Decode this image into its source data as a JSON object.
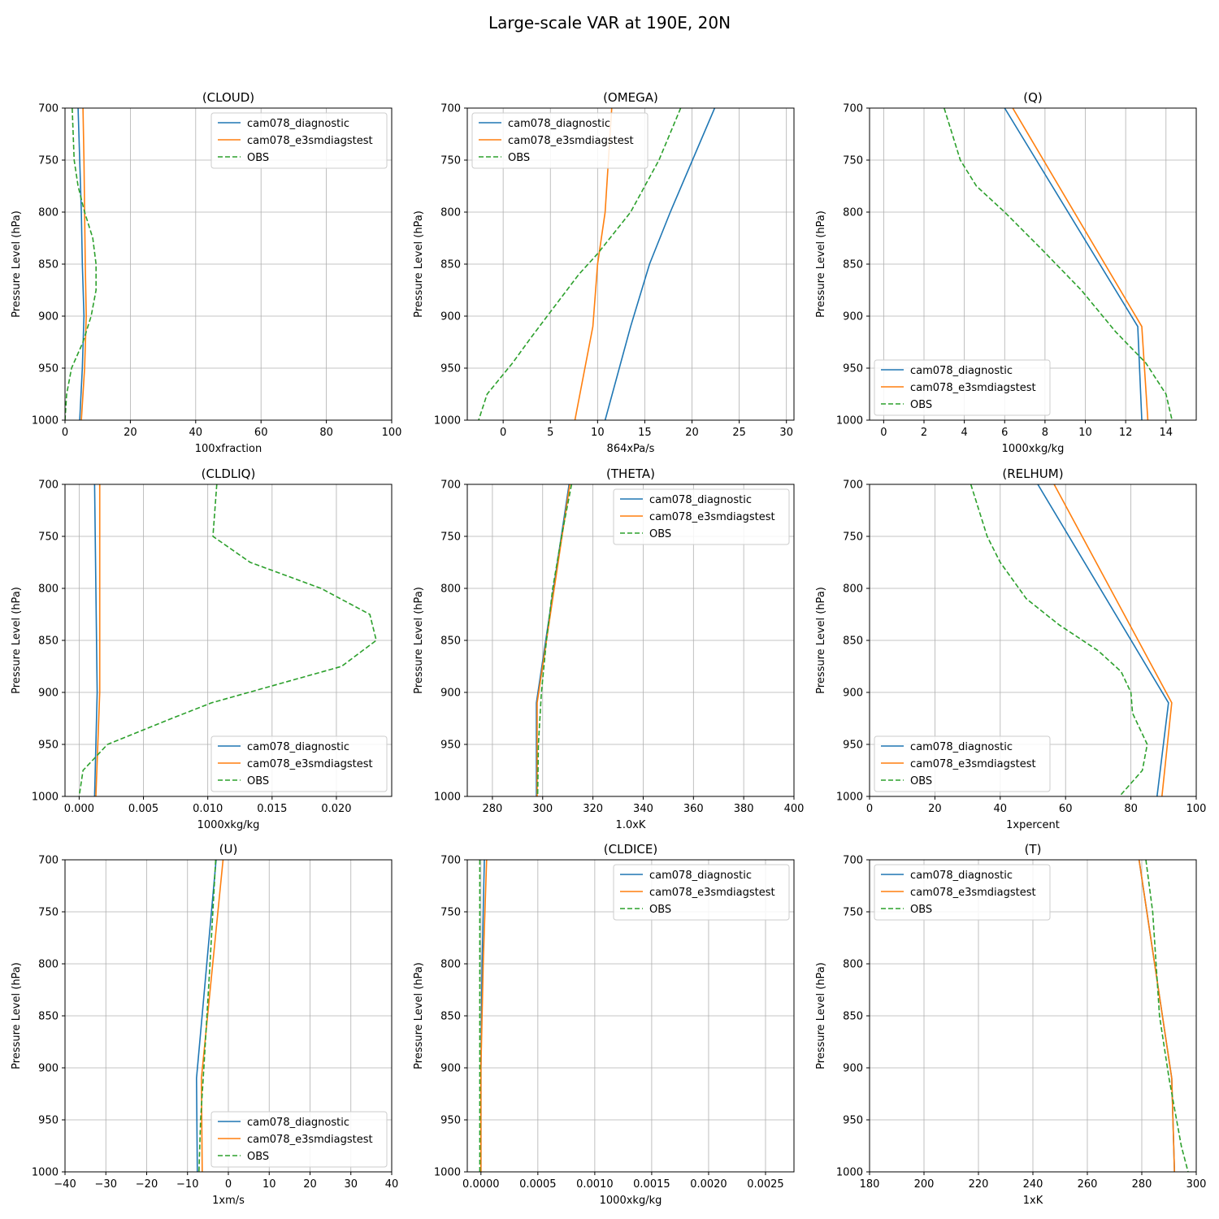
{
  "title": "Large-scale VAR at 190E, 20N",
  "ylabel": "Pressure Level (hPa)",
  "yticks": [
    700,
    750,
    800,
    850,
    900,
    950,
    1000
  ],
  "ylim": [
    1000,
    700
  ],
  "series_colors": {
    "cam078_diagnostic": "#1f77b4",
    "cam078_e3smdiagstest": "#ff7f0e",
    "OBS": "#2ca02c"
  },
  "chart_data": [
    {
      "type": "line",
      "title": "(CLOUD)",
      "xlabel": "100xfraction",
      "xlim": [
        0,
        100
      ],
      "xticks": [
        0,
        20,
        40,
        60,
        80,
        100
      ],
      "xtick_labels": [
        "0",
        "20",
        "40",
        "60",
        "80",
        "100"
      ],
      "legend": "upper right",
      "grid": true,
      "series": [
        {
          "name": "cam078_diagnostic",
          "style": "solid",
          "points": [
            [
              4,
              700
            ],
            [
              4.5,
              750
            ],
            [
              5,
              800
            ],
            [
              5.3,
              850
            ],
            [
              5.8,
              900
            ],
            [
              5.3,
              950
            ],
            [
              4.5,
              1000
            ]
          ]
        },
        {
          "name": "cam078_e3smdiagstest",
          "style": "solid",
          "points": [
            [
              5.5,
              700
            ],
            [
              5.8,
              750
            ],
            [
              6,
              800
            ],
            [
              6.2,
              850
            ],
            [
              6.5,
              900
            ],
            [
              6,
              950
            ],
            [
              5,
              1000
            ]
          ]
        },
        {
          "name": "OBS",
          "style": "dashed",
          "points": [
            [
              2.2,
              700
            ],
            [
              2.8,
              750
            ],
            [
              4,
              775
            ],
            [
              6,
              800
            ],
            [
              8.5,
              825
            ],
            [
              9.5,
              850
            ],
            [
              9.5,
              875
            ],
            [
              8,
              900
            ],
            [
              5.5,
              925
            ],
            [
              2,
              950
            ],
            [
              0.5,
              975
            ],
            [
              0,
              1000
            ]
          ]
        }
      ]
    },
    {
      "type": "line",
      "title": "(OMEGA)",
      "xlabel": "864xPa/s",
      "xlim": [
        -3.8,
        30.8
      ],
      "xticks": [
        0,
        5,
        10,
        15,
        20,
        25,
        30
      ],
      "xtick_labels": [
        "0",
        "5",
        "10",
        "15",
        "20",
        "25",
        "30"
      ],
      "legend": "upper left",
      "grid": true,
      "series": [
        {
          "name": "cam078_diagnostic",
          "style": "solid",
          "points": [
            [
              22.4,
              700
            ],
            [
              17.7,
              800
            ],
            [
              15.5,
              850
            ],
            [
              13.5,
              910
            ],
            [
              10.8,
              1000
            ]
          ]
        },
        {
          "name": "cam078_e3smdiagstest",
          "style": "solid",
          "points": [
            [
              11.5,
              700
            ],
            [
              10.8,
              800
            ],
            [
              10,
              850
            ],
            [
              9.5,
              910
            ],
            [
              7.6,
              1000
            ]
          ]
        },
        {
          "name": "OBS",
          "style": "dashed",
          "points": [
            [
              18.8,
              700
            ],
            [
              16.5,
              750
            ],
            [
              13.5,
              800
            ],
            [
              10,
              840
            ],
            [
              8,
              860
            ],
            [
              5.5,
              890
            ],
            [
              3,
              920
            ],
            [
              1,
              945
            ],
            [
              -1.7,
              975
            ],
            [
              -2.6,
              1000
            ]
          ]
        }
      ]
    },
    {
      "type": "line",
      "title": "(Q)",
      "xlabel": "1000xkg/kg",
      "xlim": [
        -0.7,
        15.5
      ],
      "xticks": [
        0,
        2,
        4,
        6,
        8,
        10,
        12,
        14
      ],
      "xtick_labels": [
        "0",
        "2",
        "4",
        "6",
        "8",
        "10",
        "12",
        "14"
      ],
      "legend": "lower left",
      "grid": true,
      "series": [
        {
          "name": "cam078_diagnostic",
          "style": "solid",
          "points": [
            [
              6,
              700
            ],
            [
              12.6,
              910
            ],
            [
              12.8,
              1000
            ]
          ]
        },
        {
          "name": "cam078_e3smdiagstest",
          "style": "solid",
          "points": [
            [
              6.4,
              700
            ],
            [
              12.8,
              910
            ],
            [
              13.1,
              1000
            ]
          ]
        },
        {
          "name": "OBS",
          "style": "dashed",
          "points": [
            [
              3,
              700
            ],
            [
              3.8,
              750
            ],
            [
              4.6,
              775
            ],
            [
              6,
              800
            ],
            [
              7.8,
              835
            ],
            [
              9.8,
              875
            ],
            [
              11.5,
              915
            ],
            [
              13,
              945
            ],
            [
              14,
              975
            ],
            [
              14.3,
              1000
            ]
          ]
        }
      ]
    },
    {
      "type": "line",
      "title": "(CLDLIQ)",
      "xlabel": "1000xkg/kg",
      "xlim": [
        -0.0011,
        0.0243
      ],
      "xticks": [
        0,
        0.005,
        0.01,
        0.015,
        0.02
      ],
      "xtick_labels": [
        "0.000",
        "0.005",
        "0.010",
        "0.015",
        "0.020"
      ],
      "legend": "lower right",
      "grid": true,
      "series": [
        {
          "name": "cam078_diagnostic",
          "style": "solid",
          "points": [
            [
              0.0012,
              700
            ],
            [
              0.0013,
              800
            ],
            [
              0.0014,
              900
            ],
            [
              0.0012,
              1000
            ]
          ]
        },
        {
          "name": "cam078_e3smdiagstest",
          "style": "solid",
          "points": [
            [
              0.0016,
              700
            ],
            [
              0.0016,
              800
            ],
            [
              0.0016,
              900
            ],
            [
              0.0013,
              1000
            ]
          ]
        },
        {
          "name": "OBS",
          "style": "dashed",
          "points": [
            [
              0.0107,
              700
            ],
            [
              0.0104,
              750
            ],
            [
              0.0133,
              775
            ],
            [
              0.0188,
              800
            ],
            [
              0.0226,
              825
            ],
            [
              0.0231,
              850
            ],
            [
              0.0204,
              875
            ],
            [
              0.0103,
              910
            ],
            [
              0.0072,
              925
            ],
            [
              0.0022,
              950
            ],
            [
              0.0003,
              975
            ],
            [
              0,
              1000
            ]
          ]
        }
      ]
    },
    {
      "type": "line",
      "title": "(THETA)",
      "xlabel": "1.0xK",
      "xlim": [
        270,
        400
      ],
      "xticks": [
        280,
        300,
        320,
        340,
        360,
        380,
        400
      ],
      "xtick_labels": [
        "280",
        "300",
        "320",
        "340",
        "360",
        "380",
        "400"
      ],
      "legend": "upper right",
      "grid": true,
      "series": [
        {
          "name": "cam078_diagnostic",
          "style": "solid",
          "points": [
            [
              310.5,
              700
            ],
            [
              297.5,
              910
            ],
            [
              297.5,
              1000
            ]
          ]
        },
        {
          "name": "cam078_e3smdiagstest",
          "style": "solid",
          "points": [
            [
              310.8,
              700
            ],
            [
              297.8,
              910
            ],
            [
              297.8,
              1000
            ]
          ]
        },
        {
          "name": "OBS",
          "style": "dashed",
          "points": [
            [
              311.5,
              700
            ],
            [
              307.5,
              750
            ],
            [
              304,
              800
            ],
            [
              301.5,
              850
            ],
            [
              299.5,
              900
            ],
            [
              298.3,
              950
            ],
            [
              298,
              1000
            ]
          ]
        }
      ]
    },
    {
      "type": "line",
      "title": "(RELHUM)",
      "xlabel": "1xpercent",
      "xlim": [
        0,
        100
      ],
      "xticks": [
        0,
        20,
        40,
        60,
        80,
        100
      ],
      "xtick_labels": [
        "0",
        "20",
        "40",
        "60",
        "80",
        "100"
      ],
      "legend": "lower left",
      "grid": true,
      "series": [
        {
          "name": "cam078_diagnostic",
          "style": "solid",
          "points": [
            [
              51.5,
              700
            ],
            [
              91.5,
              910
            ],
            [
              88,
              1000
            ]
          ]
        },
        {
          "name": "cam078_e3smdiagstest",
          "style": "solid",
          "points": [
            [
              56.5,
              700
            ],
            [
              92.5,
              910
            ],
            [
              89.5,
              1000
            ]
          ]
        },
        {
          "name": "OBS",
          "style": "dashed",
          "points": [
            [
              31,
              700
            ],
            [
              36,
              750
            ],
            [
              40,
              775
            ],
            [
              48,
              810
            ],
            [
              58,
              835
            ],
            [
              70,
              860
            ],
            [
              77,
              880
            ],
            [
              80,
              900
            ],
            [
              80.5,
              920
            ],
            [
              85,
              950
            ],
            [
              83.5,
              975
            ],
            [
              76.5,
              1000
            ]
          ]
        }
      ]
    },
    {
      "type": "line",
      "title": "(U)",
      "xlabel": "1xm/s",
      "xlim": [
        -40,
        40
      ],
      "xticks": [
        -40,
        -30,
        -20,
        -10,
        0,
        10,
        20,
        30,
        40
      ],
      "xtick_labels": [
        "−40",
        "−30",
        "−20",
        "−10",
        "0",
        "10",
        "20",
        "30",
        "40"
      ],
      "legend": "lower right",
      "grid": true,
      "series": [
        {
          "name": "cam078_diagnostic",
          "style": "solid",
          "points": [
            [
              -3,
              700
            ],
            [
              -7.8,
              910
            ],
            [
              -7.6,
              1000
            ]
          ]
        },
        {
          "name": "cam078_e3smdiagstest",
          "style": "solid",
          "points": [
            [
              -1.3,
              700
            ],
            [
              -6.6,
              910
            ],
            [
              -6.4,
              1000
            ]
          ]
        },
        {
          "name": "OBS",
          "style": "dashed",
          "points": [
            [
              -3.1,
              700
            ],
            [
              -4.5,
              800
            ],
            [
              -6,
              900
            ],
            [
              -6.8,
              950
            ],
            [
              -7.2,
              1000
            ]
          ]
        }
      ]
    },
    {
      "type": "line",
      "title": "(CLDICE)",
      "xlabel": "1000xkg/kg",
      "xlim": [
        -0.00012,
        0.00275
      ],
      "xticks": [
        0,
        0.0005,
        0.001,
        0.0015,
        0.002,
        0.0025
      ],
      "xtick_labels": [
        "0.0000",
        "0.0005",
        "0.0010",
        "0.0015",
        "0.0020",
        "0.0025"
      ],
      "legend": "upper right",
      "grid": true,
      "series": [
        {
          "name": "cam078_diagnostic",
          "style": "solid",
          "points": [
            [
              3e-05,
              700
            ],
            [
              1e-05,
              800
            ],
            [
              0,
              900
            ],
            [
              0,
              1000
            ]
          ]
        },
        {
          "name": "cam078_e3smdiagstest",
          "style": "solid",
          "points": [
            [
              5e-05,
              700
            ],
            [
              2e-05,
              800
            ],
            [
              0,
              900
            ],
            [
              0,
              1000
            ]
          ]
        },
        {
          "name": "OBS",
          "style": "dashed",
          "points": [
            [
              -1e-05,
              700
            ],
            [
              -1e-05,
              800
            ],
            [
              -1e-05,
              900
            ],
            [
              -1e-05,
              1000
            ]
          ]
        }
      ]
    },
    {
      "type": "line",
      "title": "(T)",
      "xlabel": "1xK",
      "xlim": [
        180,
        300
      ],
      "xticks": [
        180,
        200,
        220,
        240,
        260,
        280,
        300
      ],
      "xtick_labels": [
        "180",
        "200",
        "220",
        "240",
        "260",
        "280",
        "300"
      ],
      "legend": "upper left",
      "grid": true,
      "series": [
        {
          "name": "cam078_diagnostic",
          "style": "solid",
          "points": [
            [
              279,
              700
            ],
            [
              291,
              910
            ],
            [
              292,
              1000
            ]
          ]
        },
        {
          "name": "cam078_e3smdiagstest",
          "style": "solid",
          "points": [
            [
              279,
              700
            ],
            [
              291,
              910
            ],
            [
              292,
              1000
            ]
          ]
        },
        {
          "name": "OBS",
          "style": "dashed",
          "points": [
            [
              281.5,
              700
            ],
            [
              284,
              750
            ],
            [
              286.5,
              850
            ],
            [
              290,
              910
            ],
            [
              294.5,
              975
            ],
            [
              297,
              1000
            ]
          ]
        }
      ]
    }
  ]
}
